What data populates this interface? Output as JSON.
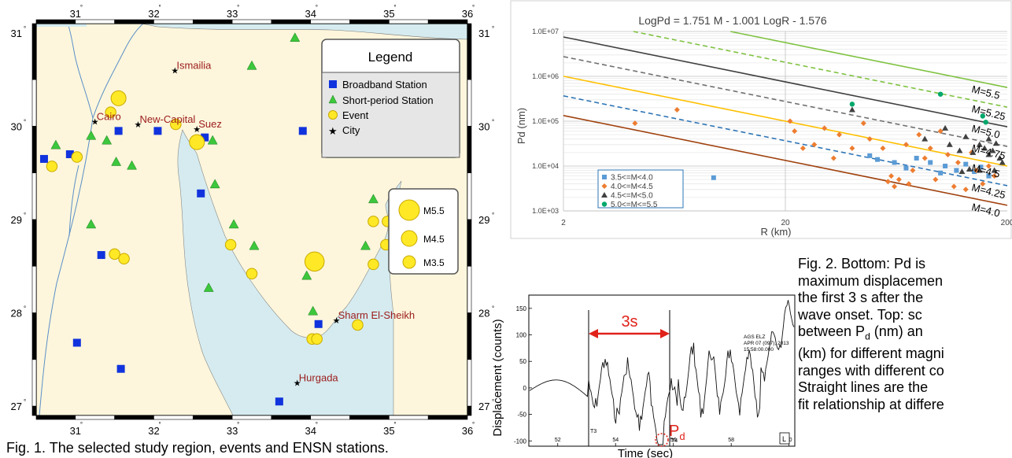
{
  "map": {
    "lon_ticks": [
      "31",
      "32",
      "33",
      "34",
      "35",
      "36"
    ],
    "lat_ticks": [
      "31",
      "30",
      "29",
      "28",
      "27"
    ],
    "cities": [
      {
        "name": "Ismailia",
        "lon": 32.27,
        "lat": 30.6
      },
      {
        "name": "Cairo",
        "lon": 31.25,
        "lat": 30.05
      },
      {
        "name": "New-Capital",
        "lon": 31.8,
        "lat": 30.02
      },
      {
        "name": "Suez",
        "lon": 32.55,
        "lat": 29.97
      },
      {
        "name": "Sharm El-Sheikh",
        "lon": 34.33,
        "lat": 27.92
      },
      {
        "name": "Hurgada",
        "lon": 33.83,
        "lat": 27.25
      }
    ],
    "broadband_stations": [
      [
        30.6,
        29.65
      ],
      [
        30.93,
        29.7
      ],
      [
        31.55,
        29.95
      ],
      [
        32.05,
        29.95
      ],
      [
        32.65,
        29.88
      ],
      [
        32.6,
        29.28
      ],
      [
        33.9,
        29.95
      ],
      [
        31.33,
        28.62
      ],
      [
        31.02,
        27.68
      ],
      [
        31.58,
        27.4
      ],
      [
        33.6,
        27.05
      ],
      [
        34.1,
        27.88
      ]
    ],
    "short_period_stations": [
      [
        33.8,
        30.95
      ],
      [
        33.25,
        30.65
      ],
      [
        30.75,
        29.8
      ],
      [
        31.2,
        29.9
      ],
      [
        31.4,
        29.85
      ],
      [
        31.52,
        29.62
      ],
      [
        31.72,
        29.58
      ],
      [
        32.75,
        29.85
      ],
      [
        32.78,
        29.38
      ],
      [
        31.2,
        28.95
      ],
      [
        33.02,
        28.95
      ],
      [
        33.28,
        28.72
      ],
      [
        32.7,
        28.27
      ],
      [
        33.95,
        28.4
      ],
      [
        34.03,
        28.02
      ],
      [
        34.8,
        29.22
      ],
      [
        34.7,
        28.72
      ]
    ],
    "events": [
      [
        30.7,
        29.57,
        3.5
      ],
      [
        31.02,
        29.67,
        3.5
      ],
      [
        31.45,
        30.15,
        3.5
      ],
      [
        31.55,
        30.3,
        4.0
      ],
      [
        32.28,
        30.02,
        3.5
      ],
      [
        32.55,
        29.83,
        4.0
      ],
      [
        31.5,
        28.63,
        3.5
      ],
      [
        31.62,
        28.58,
        3.5
      ],
      [
        32.98,
        28.73,
        3.5
      ],
      [
        33.25,
        28.42,
        3.5
      ],
      [
        34.05,
        28.55,
        4.5
      ],
      [
        34.6,
        27.87,
        3.5
      ],
      [
        34.02,
        27.72,
        3.5
      ],
      [
        34.08,
        27.72,
        3.5
      ],
      [
        34.8,
        28.98,
        3.5
      ],
      [
        34.98,
        28.98,
        3.5
      ],
      [
        34.96,
        28.73,
        3.5
      ],
      [
        34.8,
        28.52,
        3.5
      ]
    ],
    "legend": {
      "title": "Legend",
      "items": [
        "Broadband Station",
        "Short-period Station",
        "Event",
        "City"
      ]
    },
    "size_legend": [
      "M5.5",
      "M4.5",
      "M3.5"
    ],
    "caption": "Fig. 1. The selected study region, events and ENSN stations."
  },
  "scatter": {
    "chart_data": {
      "type": "scatter",
      "title": "LogPd = 1.751 M - 1.001 LogR - 1.576",
      "xlabel": "R (km)",
      "ylabel": "Pd (nm)",
      "xscale": "log",
      "yscale": "log",
      "xlim": [
        2,
        200
      ],
      "ylim": [
        1000,
        10000000
      ],
      "x_ticks": [
        "2",
        "20",
        "200"
      ],
      "y_ticks": [
        "1.0E+07",
        "1.0E+06",
        "1.0E+05",
        "1.0E+04",
        "1.0E+03"
      ],
      "legend_placement": "bottom-left",
      "series": [
        {
          "name": "3.5<=M<4.0",
          "color": "#5b9bd5",
          "marker": "square",
          "points": [
            [
              9.5,
              5500
            ],
            [
              48,
              17000
            ],
            [
              52,
              14000
            ],
            [
              62,
              12000
            ],
            [
              70,
              9000
            ],
            [
              78,
              15000
            ],
            [
              90,
              12000
            ],
            [
              105,
              10000
            ],
            [
              118,
              8000
            ],
            [
              130,
              11000
            ],
            [
              142,
              7500
            ],
            [
              152,
              9500
            ],
            [
              165,
              6000
            ],
            [
              100,
              7000
            ]
          ]
        },
        {
          "name": "4.0<=M<4.5",
          "color": "#ed7d31",
          "marker": "diamond",
          "points": [
            [
              4.2,
              90000
            ],
            [
              6.5,
              180000
            ],
            [
              21,
              100000
            ],
            [
              22,
              60000
            ],
            [
              24,
              25000
            ],
            [
              27,
              30000
            ],
            [
              30,
              70000
            ],
            [
              33,
              15000
            ],
            [
              35,
              50000
            ],
            [
              40,
              25000
            ],
            [
              45,
              90000
            ],
            [
              48,
              40000
            ],
            [
              55,
              25000
            ],
            [
              60,
              6000
            ],
            [
              65,
              5000
            ],
            [
              70,
              30000
            ],
            [
              75,
              8000
            ],
            [
              80,
              50000
            ],
            [
              85,
              15000
            ],
            [
              90,
              25000
            ],
            [
              95,
              5000
            ],
            [
              100,
              60000
            ],
            [
              108,
              18000
            ],
            [
              115,
              3500
            ],
            [
              120,
              12000
            ],
            [
              130,
              3000
            ],
            [
              138,
              20000
            ],
            [
              145,
              8000
            ],
            [
              155,
              4000
            ],
            [
              165,
              10000
            ],
            [
              175,
              6000
            ],
            [
              58,
              4500
            ],
            [
              62,
              3500
            ],
            [
              72,
              4000
            ]
          ]
        },
        {
          "name": "4.5<=M<5.0",
          "color": "#404040",
          "marker": "triangle",
          "points": [
            [
              40,
              180000
            ],
            [
              85,
              40000
            ],
            [
              105,
              70000
            ],
            [
              110,
              30000
            ],
            [
              122,
              22000
            ],
            [
              130,
              45000
            ],
            [
              140,
              20000
            ],
            [
              150,
              30000
            ],
            [
              158,
              25000
            ],
            [
              165,
              18000
            ],
            [
              172,
              22000
            ],
            [
              178,
              32000
            ],
            [
              185,
              15000
            ],
            [
              165,
              40000
            ],
            [
              150,
              8000
            ],
            [
              175,
              8000
            ],
            [
              190,
              12000
            ],
            [
              135,
              8500
            ],
            [
              125,
              7500
            ]
          ]
        },
        {
          "name": "5.0<=M<=5.5",
          "color": "#00a86b",
          "marker": "circle",
          "points": [
            [
              40,
              240000
            ],
            [
              100,
              400000
            ],
            [
              155,
              130000
            ],
            [
              160,
              95000
            ]
          ]
        }
      ],
      "fit_lines": [
        {
          "label": "M=5.5",
          "M": 5.5,
          "color": "#7fc241",
          "dash": false
        },
        {
          "label": "M=5.25",
          "M": 5.25,
          "color": "#7fc241",
          "dash": true
        },
        {
          "label": "M=5.0",
          "M": 5.0,
          "color": "#404040",
          "dash": false
        },
        {
          "label": "M=4.75",
          "M": 4.75,
          "color": "#707070",
          "dash": true
        },
        {
          "label": "M=4.5",
          "M": 4.5,
          "color": "#ffc000",
          "dash": false
        },
        {
          "label": "M=4.25",
          "M": 4.25,
          "color": "#2e75b6",
          "dash": true
        },
        {
          "label": "M=4.0",
          "M": 4.0,
          "color": "#a0420f",
          "dash": false
        }
      ]
    }
  },
  "waveform": {
    "ylabel": "Displacement (counts)",
    "xlabel": "Time (sec)",
    "window_label": "3s",
    "pd_label": "P",
    "pd_sub": "d",
    "y_ticks": [
      "150",
      "100",
      "50",
      "0",
      "-50",
      "-100"
    ],
    "x_ticks": [
      "52",
      "54",
      "56",
      "58",
      "60"
    ],
    "station_text": [
      "AGS ELZ",
      "APR 07 (097), 2013",
      "15:58:00.000"
    ],
    "marker_labels": [
      "T3",
      "T4"
    ],
    "corner_label": "L"
  },
  "caption2": {
    "line1_a": "Fig. 2. Bottom: Pd is",
    "line2": "maximum displacemen",
    "line3": "the first 3 s after the",
    "line4": "wave onset. Top: sc",
    "line5_a": "between P",
    "line5_sub": "d",
    "line5_b": " (nm) an",
    "line6": "(km) for different magni",
    "line7": "ranges with different co",
    "line8": "Straight lines are the",
    "line9": "fit relationship at differe"
  }
}
